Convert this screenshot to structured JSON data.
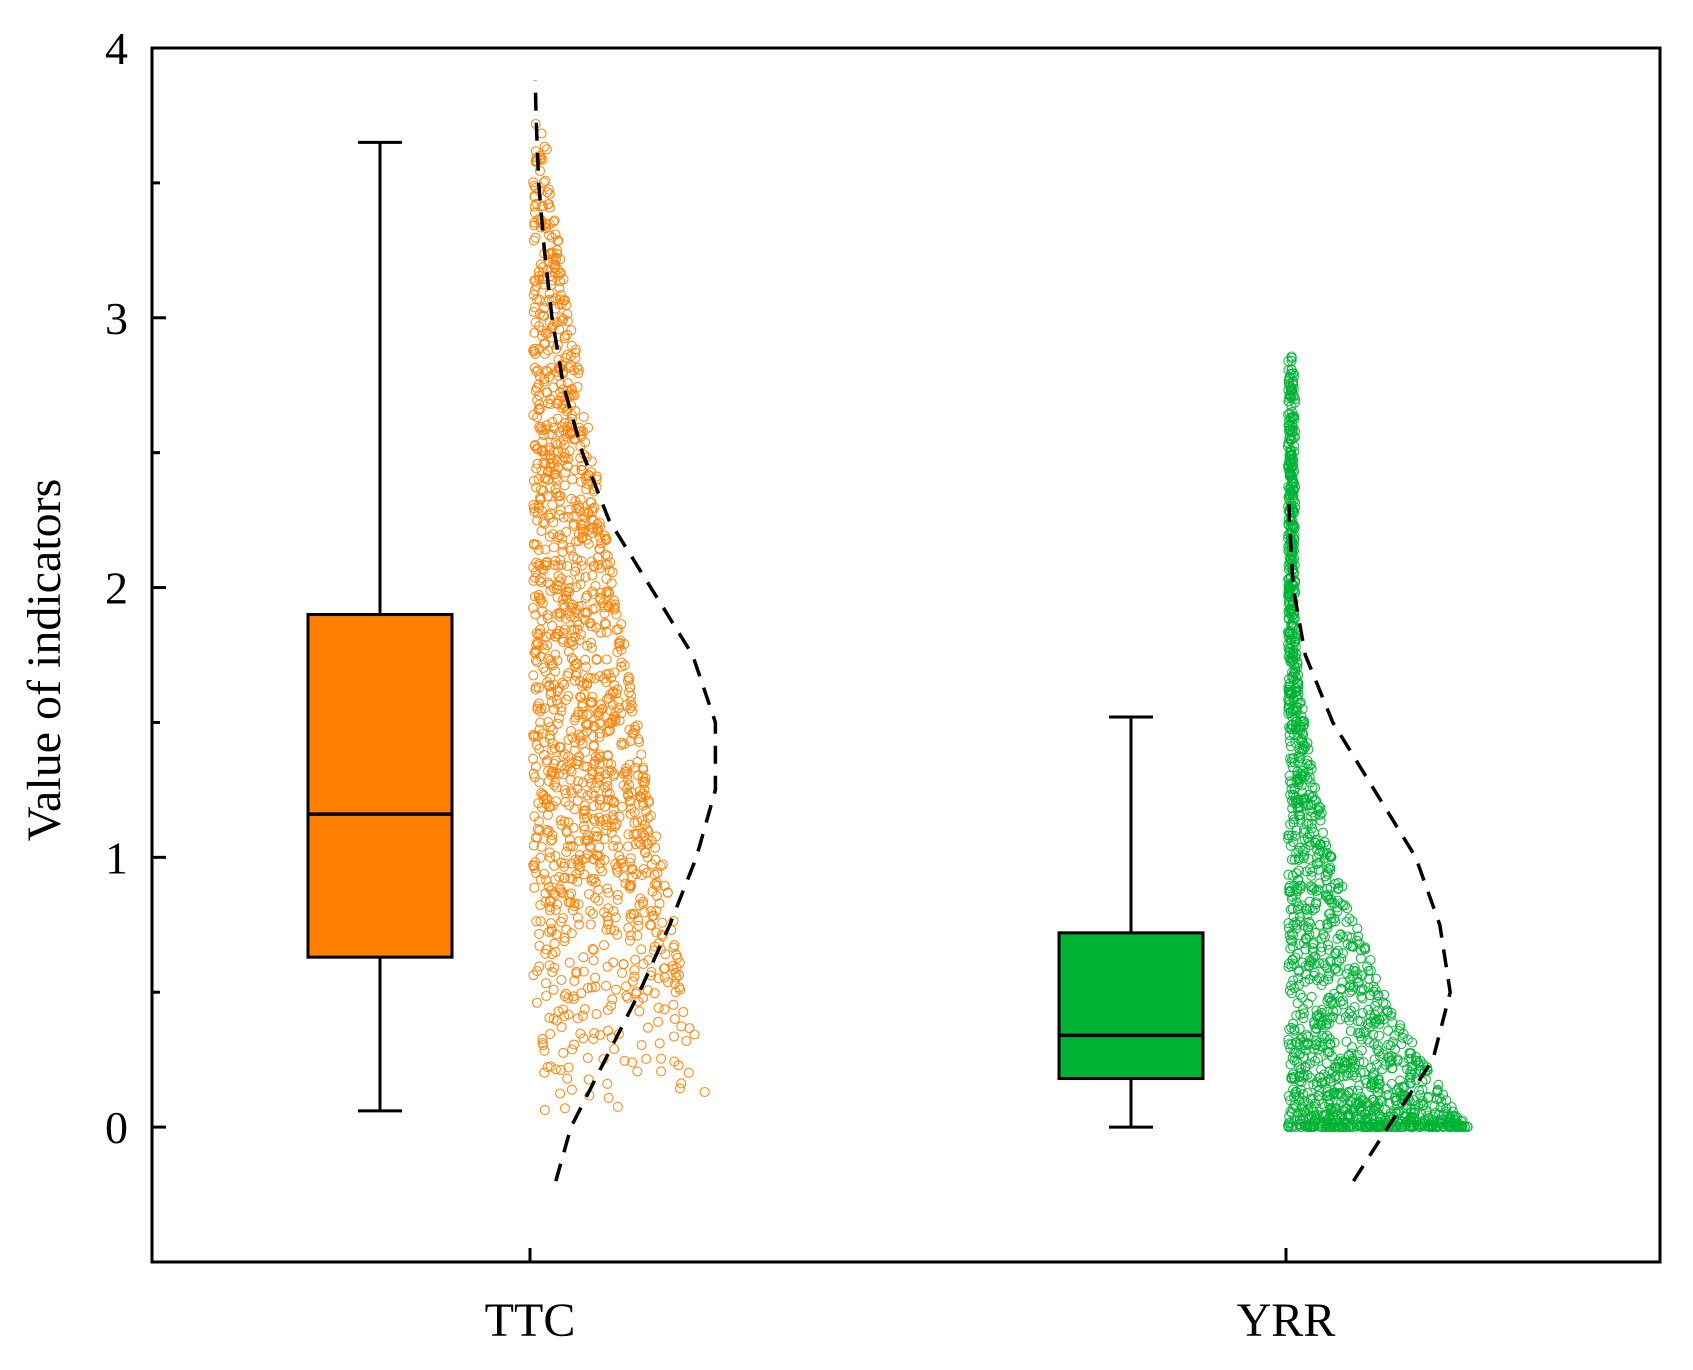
{
  "chart_data": {
    "type": "box-raincloud",
    "title": "",
    "xlabel": "",
    "ylabel": "Value of indicators",
    "ylim": [
      -0.5,
      4
    ],
    "yticks": [
      0,
      1,
      2,
      3,
      4
    ],
    "ytick_labels": [
      "0",
      "1",
      "2",
      "3",
      "4"
    ],
    "y_minor_step": 0.5,
    "categories": [
      "TTC",
      "YRR"
    ],
    "series": [
      {
        "name": "TTC",
        "color": "#ff7f00",
        "box": {
          "whisker_low": 0.06,
          "q1": 0.63,
          "median": 1.16,
          "q3": 1.9,
          "whisker_high": 3.65
        },
        "scatter": {
          "min": 0.06,
          "max": 3.88,
          "count": 1400,
          "skew": 0.55
        },
        "density_curve": [
          [
            -0.2,
            0.06
          ],
          [
            0.0,
            0.1
          ],
          [
            0.25,
            0.19
          ],
          [
            0.5,
            0.28
          ],
          [
            0.75,
            0.36
          ],
          [
            1.0,
            0.43
          ],
          [
            1.25,
            0.48
          ],
          [
            1.5,
            0.48
          ],
          [
            1.75,
            0.42
          ],
          [
            2.0,
            0.31
          ],
          [
            2.25,
            0.2
          ],
          [
            2.5,
            0.13
          ],
          [
            2.75,
            0.08
          ],
          [
            3.0,
            0.05
          ],
          [
            3.25,
            0.03
          ],
          [
            3.5,
            0.015
          ],
          [
            3.75,
            0.008
          ],
          [
            3.88,
            0.006
          ]
        ]
      },
      {
        "name": "YRR",
        "color": "#00b233",
        "box": {
          "whisker_low": 0.0,
          "q1": 0.18,
          "median": 0.34,
          "q3": 0.72,
          "whisker_high": 1.52
        },
        "scatter": {
          "min": 0.0,
          "max": 2.87,
          "count": 1600,
          "skew": 2.4
        },
        "density_curve": [
          [
            -0.2,
            0.19
          ],
          [
            0.0,
            0.29
          ],
          [
            0.25,
            0.42
          ],
          [
            0.5,
            0.47
          ],
          [
            0.75,
            0.44
          ],
          [
            1.0,
            0.37
          ],
          [
            1.25,
            0.25
          ],
          [
            1.5,
            0.13
          ],
          [
            1.75,
            0.05
          ],
          [
            2.0,
            0.015
          ],
          [
            2.25,
            0.004
          ],
          [
            2.35,
            0.002
          ]
        ]
      }
    ]
  }
}
